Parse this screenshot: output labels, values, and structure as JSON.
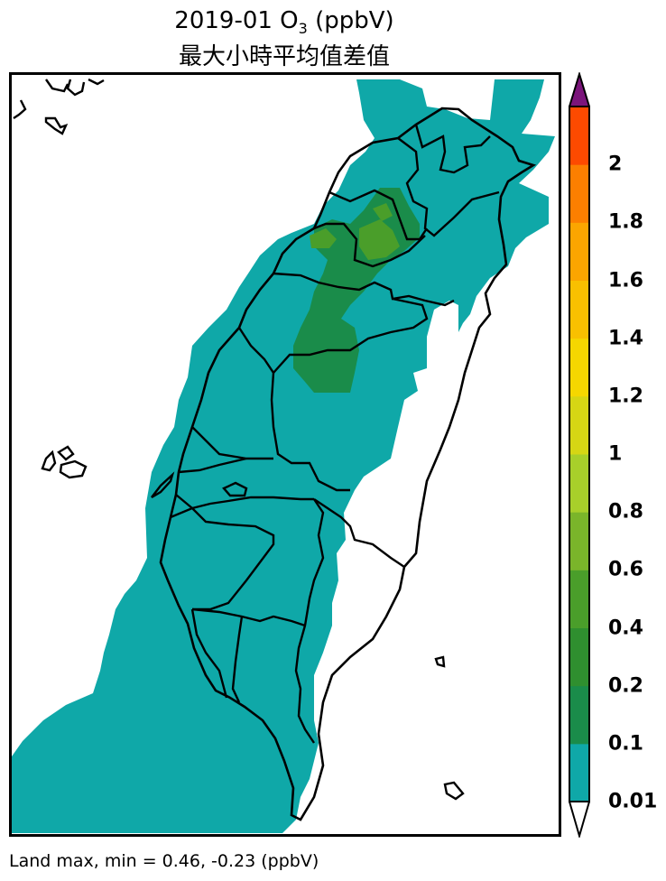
{
  "title": {
    "line1_prefix": "2019-01 O",
    "line1_sub": "3",
    "line1_suffix": " (ppbV)",
    "line2": "最大小時平均值差值"
  },
  "colorbar": {
    "levels": [
      "0.01",
      "0.1",
      "0.2",
      "0.4",
      "0.6",
      "0.8",
      "1",
      "1.2",
      "1.4",
      "1.6",
      "1.8",
      "2"
    ],
    "colors": [
      "#0fa8a8",
      "#1a8c4a",
      "#2f8f2f",
      "#4a9e2a",
      "#7ab52a",
      "#a8cf2a",
      "#d6d614",
      "#f5d700",
      "#f9c000",
      "#fba500",
      "#fc7f00",
      "#fd4a00"
    ],
    "under_color": "#ffffff",
    "over_color": "#7b157b"
  },
  "map_colors": {
    "base": "#0fa8a8",
    "level1": "#1a8c4a",
    "level2": "#4a9e2a"
  },
  "footer": "Land max, min = 0.46, -0.23 (ppbV)"
}
